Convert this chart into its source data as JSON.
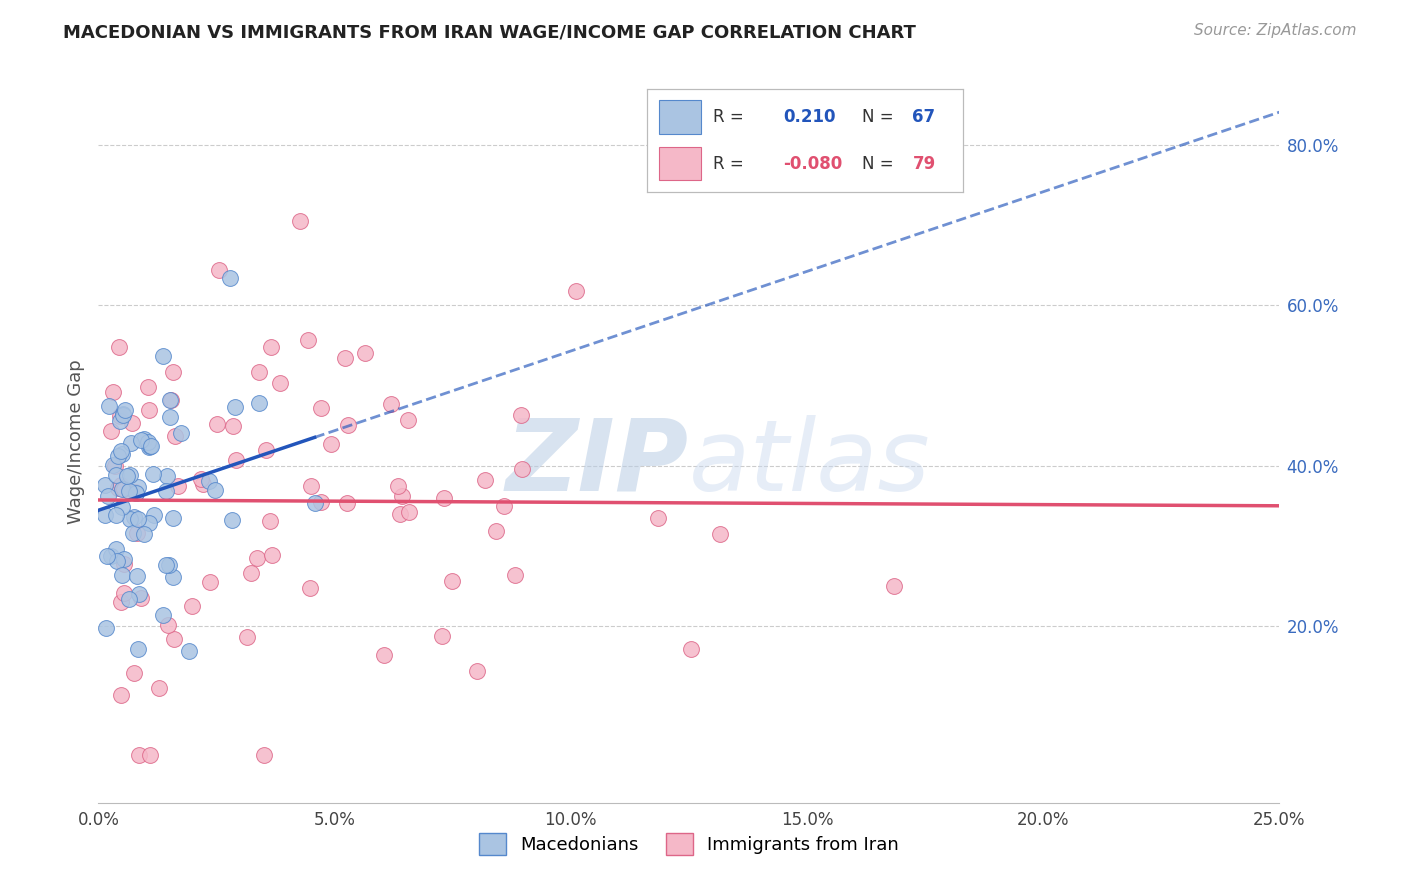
{
  "title": "MACEDONIAN VS IMMIGRANTS FROM IRAN WAGE/INCOME GAP CORRELATION CHART",
  "source": "Source: ZipAtlas.com",
  "ylabel": "Wage/Income Gap",
  "xlim": [
    0.0,
    0.25
  ],
  "ylim": [
    -0.02,
    0.88
  ],
  "xticks": [
    0.0,
    0.05,
    0.1,
    0.15,
    0.2,
    0.25
  ],
  "yticks": [
    0.2,
    0.4,
    0.6,
    0.8
  ],
  "xticklabels": [
    "0.0%",
    "5.0%",
    "10.0%",
    "15.0%",
    "20.0%",
    "25.0%"
  ],
  "yticklabels": [
    "20.0%",
    "40.0%",
    "60.0%",
    "80.0%"
  ],
  "blue_R": 0.21,
  "blue_N": 67,
  "pink_R": -0.08,
  "pink_N": 79,
  "blue_color": "#aac4e2",
  "pink_color": "#f5b8c8",
  "blue_line_color": "#2255bb",
  "pink_line_color": "#e05070",
  "blue_marker_edge": "#5588cc",
  "pink_marker_edge": "#dd6688",
  "background_color": "#ffffff",
  "grid_color": "#cccccc",
  "watermark_color": "#ccd9ee"
}
